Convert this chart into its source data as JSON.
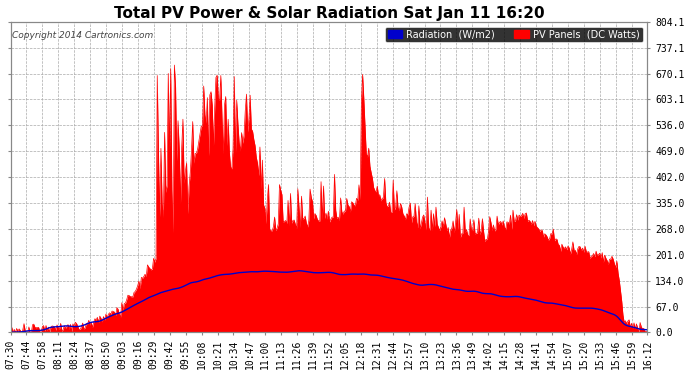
{
  "title": "Total PV Power & Solar Radiation Sat Jan 11 16:20",
  "copyright": "Copyright 2014 Cartronics.com",
  "legend_radiation": "Radiation  (W/m2)",
  "legend_pv": "PV Panels  (DC Watts)",
  "yticks": [
    0.0,
    67.0,
    134.0,
    201.0,
    268.0,
    335.0,
    402.0,
    469.0,
    536.0,
    603.1,
    670.1,
    737.1,
    804.1
  ],
  "ymax": 804.1,
  "background_color": "#ffffff",
  "plot_bg_color": "#ffffff",
  "grid_color": "#aaaaaa",
  "fill_color": "#ff0000",
  "line_color": "#0000cc",
  "title_fontsize": 11,
  "tick_fontsize": 7,
  "xtick_labels": [
    "07:30",
    "07:44",
    "07:58",
    "08:11",
    "08:24",
    "08:37",
    "08:50",
    "09:03",
    "09:16",
    "09:29",
    "09:42",
    "09:55",
    "10:08",
    "10:21",
    "10:34",
    "10:47",
    "11:00",
    "11:13",
    "11:26",
    "11:39",
    "11:52",
    "12:05",
    "12:18",
    "12:31",
    "12:44",
    "12:57",
    "13:10",
    "13:23",
    "13:36",
    "13:49",
    "14:02",
    "14:15",
    "14:28",
    "14:41",
    "14:54",
    "15:07",
    "15:20",
    "15:33",
    "15:46",
    "15:59",
    "16:12"
  ]
}
